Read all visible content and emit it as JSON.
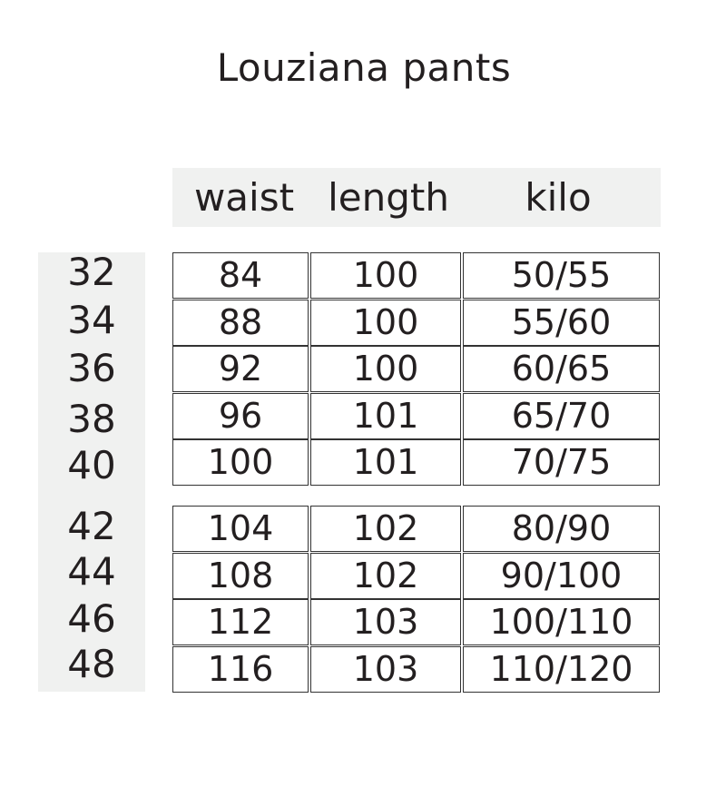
{
  "title": "Louziana pants",
  "headers": [
    "waist",
    "length",
    "kilo"
  ],
  "sizes": [
    "32",
    "34",
    "36",
    "38",
    "40",
    "42",
    "44",
    "46",
    "48"
  ],
  "groups": [
    [
      [
        "84",
        "100",
        "50/55"
      ],
      [
        "88",
        "100",
        "55/60"
      ],
      [
        "92",
        "100",
        "60/65"
      ],
      [
        "96",
        "101",
        "65/70"
      ],
      [
        "100",
        "101",
        "70/75"
      ]
    ],
    [
      [
        "104",
        "102",
        "80/90"
      ],
      [
        "108",
        "102",
        "90/100"
      ],
      [
        "112",
        "103",
        "100/110"
      ],
      [
        "116",
        "103",
        "110/120"
      ]
    ]
  ],
  "colors": {
    "text": "#231f20",
    "band": "#f0f1f0",
    "border": "#333333"
  }
}
